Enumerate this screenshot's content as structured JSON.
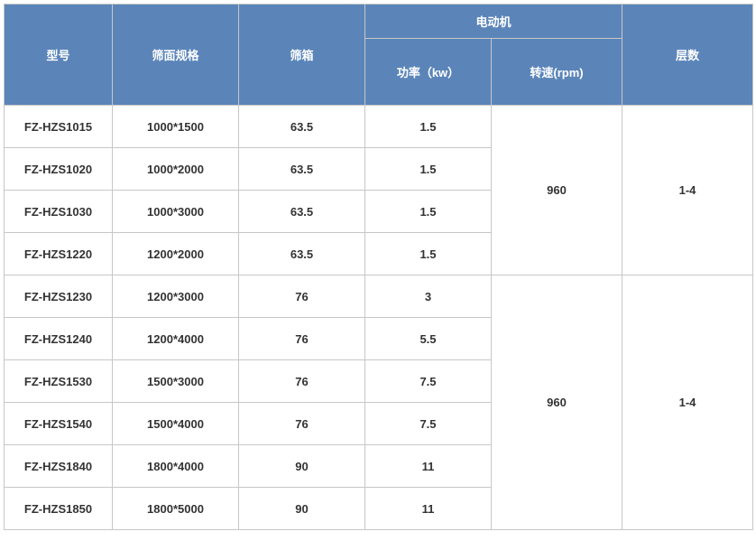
{
  "table": {
    "header_bg": "#5b85b9",
    "header_color": "#ffffff",
    "border_color": "#c7c7c7",
    "columns": {
      "model": "型号",
      "screen_spec": "筛面规格",
      "screen_box": "筛箱",
      "motor_group": "电动机",
      "power": "功率（kw）",
      "speed": "转速(rpm)",
      "layers": "层数"
    },
    "groups": [
      {
        "speed": "960",
        "layers": "1-4",
        "rows": [
          {
            "model": "FZ-HZS1015",
            "spec": "1000*1500",
            "box": "63.5",
            "power": "1.5"
          },
          {
            "model": "FZ-HZS1020",
            "spec": "1000*2000",
            "box": "63.5",
            "power": "1.5"
          },
          {
            "model": "FZ-HZS1030",
            "spec": "1000*3000",
            "box": "63.5",
            "power": "1.5"
          },
          {
            "model": "FZ-HZS1220",
            "spec": "1200*2000",
            "box": "63.5",
            "power": "1.5"
          }
        ]
      },
      {
        "speed": "960",
        "layers": "1-4",
        "rows": [
          {
            "model": "FZ-HZS1230",
            "spec": "1200*3000",
            "box": "76",
            "power": "3"
          },
          {
            "model": "FZ-HZS1240",
            "spec": "1200*4000",
            "box": "76",
            "power": "5.5"
          },
          {
            "model": "FZ-HZS1530",
            "spec": "1500*3000",
            "box": "76",
            "power": "7.5"
          },
          {
            "model": "FZ-HZS1540",
            "spec": "1500*4000",
            "box": "76",
            "power": "7.5"
          },
          {
            "model": "FZ-HZS1840",
            "spec": "1800*4000",
            "box": "90",
            "power": "11"
          },
          {
            "model": "FZ-HZS1850",
            "spec": "1800*5000",
            "box": "90",
            "power": "11"
          }
        ]
      }
    ]
  }
}
